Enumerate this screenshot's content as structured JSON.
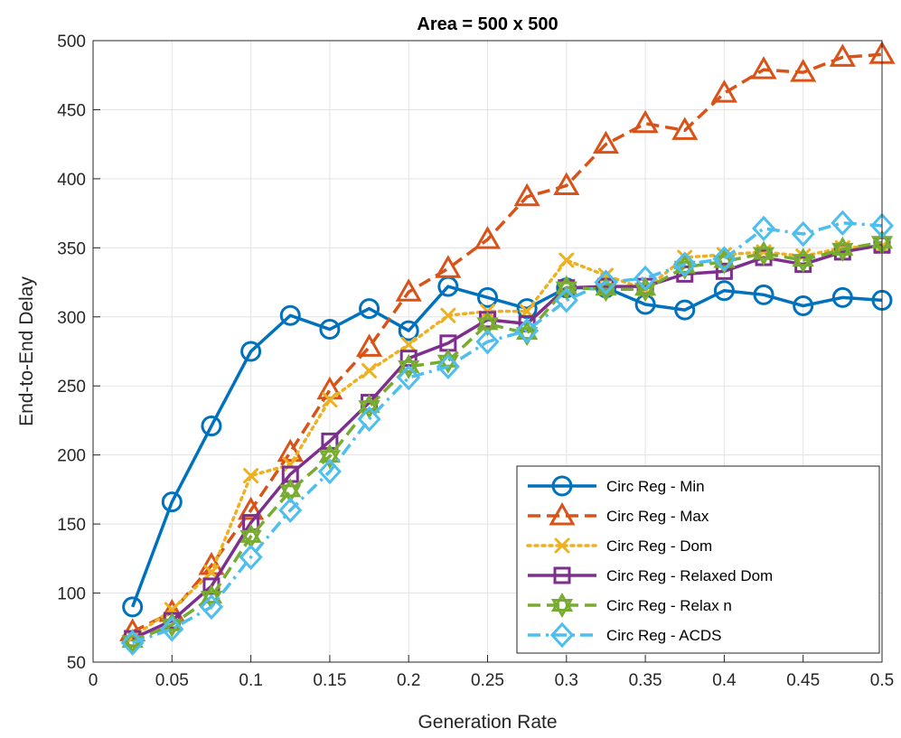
{
  "chart_data": {
    "type": "line",
    "title": "Area = 500 x 500",
    "xlabel": "Generation Rate",
    "ylabel": "End-to-End Delay",
    "xlim": [
      0,
      0.5
    ],
    "ylim": [
      50,
      500
    ],
    "grid": true,
    "legend_position": "bottom-right",
    "x_ticks": [
      "0",
      "0.05",
      "0.1",
      "0.15",
      "0.2",
      "0.25",
      "0.3",
      "0.35",
      "0.4",
      "0.45",
      "0.5"
    ],
    "y_ticks": [
      "50",
      "100",
      "150",
      "200",
      "250",
      "300",
      "350",
      "400",
      "450",
      "500"
    ],
    "x": [
      0.025,
      0.05,
      0.075,
      0.1,
      0.125,
      0.15,
      0.175,
      0.2,
      0.225,
      0.25,
      0.275,
      0.3,
      0.325,
      0.35,
      0.375,
      0.4,
      0.425,
      0.45,
      0.475,
      0.5
    ],
    "series": [
      {
        "name": "Circ Reg - Min",
        "color": "#0072BD",
        "marker": "circle",
        "dash": "solid",
        "values": [
          90,
          166,
          221,
          275,
          301,
          291,
          306,
          290,
          322,
          314,
          306,
          321,
          321,
          309,
          305,
          319,
          316,
          308,
          314,
          312
        ]
      },
      {
        "name": "Circ Reg - Max",
        "color": "#D95319",
        "marker": "triangle",
        "dash": "dashed",
        "values": [
          72,
          86,
          120,
          160,
          202,
          247,
          278,
          318,
          335,
          356,
          387,
          395,
          425,
          440,
          435,
          462,
          479,
          477,
          488,
          490
        ]
      },
      {
        "name": "Circ Reg - Dom",
        "color": "#EDB120",
        "marker": "x",
        "dash": "dotted",
        "values": [
          68,
          88,
          115,
          185,
          193,
          240,
          261,
          280,
          301,
          304,
          304,
          341,
          330,
          320,
          343,
          345,
          347,
          344,
          350,
          351
        ]
      },
      {
        "name": "Circ Reg - Relaxed Dom",
        "color": "#7E2F8E",
        "marker": "square",
        "dash": "solid",
        "values": [
          67,
          80,
          105,
          151,
          186,
          210,
          238,
          270,
          281,
          298,
          295,
          321,
          322,
          322,
          331,
          333,
          343,
          338,
          347,
          352
        ]
      },
      {
        "name": "Circ Reg - Relax n",
        "color": "#77AC30",
        "marker": "hexagram",
        "dash": "dashed",
        "values": [
          65,
          77,
          97,
          141,
          174,
          199,
          235,
          264,
          268,
          295,
          288,
          321,
          320,
          320,
          336,
          340,
          346,
          341,
          349,
          354
        ]
      },
      {
        "name": "Circ Reg - ACDS",
        "color": "#4DBEEE",
        "marker": "diamond",
        "dash": "dashdot",
        "values": [
          64,
          74,
          90,
          126,
          160,
          188,
          226,
          256,
          264,
          282,
          290,
          312,
          325,
          328,
          338,
          342,
          364,
          360,
          368,
          366
        ]
      }
    ]
  }
}
